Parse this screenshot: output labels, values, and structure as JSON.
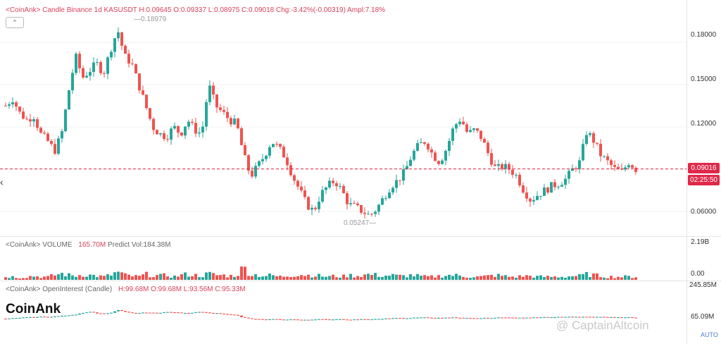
{
  "legend_main": {
    "text": "<CoinAnk> Candle   Binance 1d KASUSDT H:0.09645  O:0.09337  L:0.08975  C:0.09018 Chg:-3.42%(-0.00319)  Ampl:7.18%"
  },
  "legend_volume": {
    "prefix": "<CoinAnk> VOLUME",
    "value": "165.70M",
    "predict": "Predict Vol:184.38M"
  },
  "legend_oi": {
    "prefix": "<CoinAnk> OpenInterest (Candle)",
    "values": "H:99.68M  O:99.68M  L:93.56M  C:95.33M"
  },
  "price_axis": {
    "ticks": [
      "0.18000",
      "0.15000",
      "0.12000",
      "0.06000"
    ]
  },
  "volume_axis": {
    "top": "2.19B",
    "bottom": "0.00"
  },
  "oi_axis": {
    "top": "245.85M",
    "bottom": "65.09M"
  },
  "current_price": {
    "value": "0.09016",
    "countdown": "02:25:50"
  },
  "annotations": {
    "high": "0.18979",
    "low": "0.05247"
  },
  "collapse_icon": "chevron-up-icon",
  "brand": "CoinAnk",
  "watermark": "@ CaptainAltcoin",
  "auto_label": "AUTO",
  "colors": {
    "up": "#26a69a",
    "down": "#ef5350",
    "price_line": "#e0294a"
  },
  "chart_data": [
    {
      "type": "candlestick",
      "title": "Binance 1d KASUSDT",
      "ylim": [
        0.045,
        0.2
      ],
      "close_path": [
        0.135,
        0.14,
        0.13,
        0.125,
        0.128,
        0.115,
        0.11,
        0.103,
        0.115,
        0.145,
        0.17,
        0.155,
        0.16,
        0.165,
        0.158,
        0.175,
        0.189,
        0.17,
        0.165,
        0.15,
        0.135,
        0.12,
        0.115,
        0.113,
        0.12,
        0.115,
        0.125,
        0.118,
        0.115,
        0.15,
        0.135,
        0.13,
        0.125,
        0.122,
        0.1,
        0.085,
        0.092,
        0.1,
        0.11,
        0.105,
        0.098,
        0.085,
        0.075,
        0.065,
        0.06,
        0.072,
        0.078,
        0.082,
        0.075,
        0.065,
        0.063,
        0.06,
        0.057,
        0.062,
        0.07,
        0.078,
        0.082,
        0.088,
        0.1,
        0.107,
        0.11,
        0.1,
        0.095,
        0.105,
        0.12,
        0.126,
        0.115,
        0.118,
        0.112,
        0.1,
        0.09,
        0.092,
        0.09,
        0.085,
        0.075,
        0.068,
        0.072,
        0.075,
        0.078,
        0.08,
        0.083,
        0.09,
        0.095,
        0.117,
        0.11,
        0.1,
        0.095,
        0.09,
        0.088,
        0.095,
        0.09
      ]
    },
    {
      "type": "bar",
      "title": "VOLUME",
      "ylim": [
        0,
        2.19
      ],
      "unit": "B",
      "values_path": [
        0.2,
        0.2,
        0.15,
        0.2,
        0.25,
        0.2,
        0.18,
        0.3,
        0.4,
        0.3,
        0.25,
        0.35,
        0.3,
        0.25,
        0.2,
        0.3,
        0.5,
        0.3,
        0.25,
        0.2,
        0.35,
        0.3,
        0.25,
        0.3,
        0.2,
        0.3,
        0.35,
        0.3,
        0.25,
        0.4,
        0.3,
        0.3,
        0.25,
        0.3,
        0.8,
        0.35,
        0.3,
        0.25,
        0.3,
        0.2,
        0.25,
        0.3,
        0.35,
        0.3,
        0.3,
        0.25,
        0.2,
        0.25,
        0.2,
        0.3,
        0.25,
        0.3,
        0.35,
        0.3,
        0.25,
        0.3,
        0.25,
        0.25,
        0.3,
        0.25,
        0.2,
        0.2,
        0.25,
        0.3,
        0.3,
        0.25,
        0.2,
        0.2,
        0.2,
        0.25,
        0.3,
        0.25,
        0.2,
        0.2,
        0.25,
        0.25,
        0.2,
        0.2,
        0.2,
        0.2,
        0.2,
        0.25,
        0.25,
        0.35,
        0.3,
        0.25,
        0.2,
        0.2,
        0.2,
        0.2,
        0.2
      ]
    },
    {
      "type": "candlestick",
      "title": "OpenInterest",
      "ylim": [
        65.09,
        245.85
      ],
      "unit": "M",
      "close_path": [
        90,
        92,
        95,
        98,
        96,
        100,
        98,
        102,
        105,
        108,
        110,
        120,
        125,
        118,
        115,
        120,
        135,
        125,
        120,
        118,
        122,
        120,
        118,
        125,
        122,
        120,
        118,
        122,
        125,
        120,
        118,
        115,
        112,
        108,
        95,
        90,
        88,
        85,
        88,
        86,
        85,
        86,
        85,
        84,
        86,
        88,
        85,
        86,
        87,
        85,
        86,
        87,
        86,
        88,
        90,
        92,
        93,
        92,
        94,
        95,
        96,
        95,
        94,
        95,
        96,
        95,
        94,
        92,
        93,
        94,
        95,
        96,
        95,
        94,
        95,
        96,
        97,
        98,
        97,
        99,
        100,
        98,
        99,
        100,
        99,
        100,
        98,
        97,
        96,
        97,
        95
      ]
    }
  ]
}
